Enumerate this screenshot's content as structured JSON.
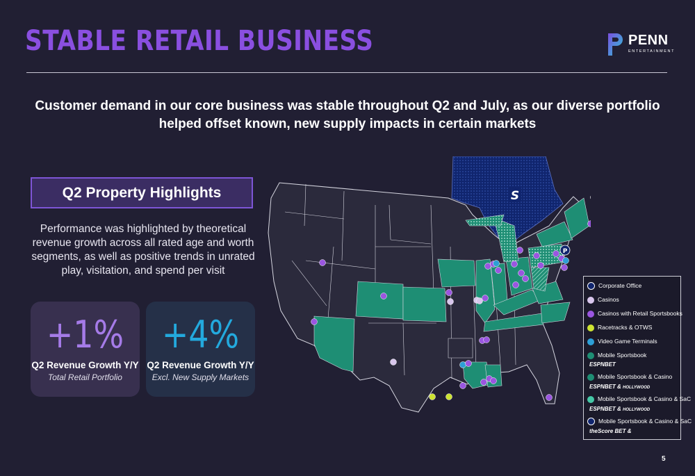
{
  "title": "STABLE RETAIL BUSINESS",
  "logo": {
    "word": "PENN",
    "sub": "ENTERTAINMENT"
  },
  "headline": "Customer demand in our core business was stable throughout Q2 and July, as our diverse portfolio helped offset known, new supply impacts in certain markets",
  "highlights": {
    "heading": "Q2 Property Highlights",
    "body": "Performance was highlighted by theoretical revenue growth across all rated age and worth segments, as well as positive trends in unrated play, visitation, and spend per visit"
  },
  "stats": [
    {
      "value": "+1%",
      "label": "Q2 Revenue Growth Y/Y",
      "sub": "Total Retail Portfolio"
    },
    {
      "value": "+4%",
      "label": "Q2 Revenue Growth Y/Y",
      "sub": "Excl. New Supply Markets"
    }
  ],
  "legend": {
    "items": [
      {
        "label": "Corporate Office",
        "icon": "penn-logo-icon",
        "color": "#1a2f6e"
      },
      {
        "label": "Casinos",
        "icon": "dot",
        "color": "#d8c6ec"
      },
      {
        "label": "Casinos with Retail Sportsbooks",
        "icon": "dot",
        "color": "#9a56e0"
      },
      {
        "label": "Racetracks & OTWS",
        "icon": "dot",
        "color": "#cde332"
      },
      {
        "label": "Video Game Terminals",
        "icon": "dot",
        "color": "#2d9fd6"
      },
      {
        "label": "Mobile Sportsbook",
        "icon": "dot",
        "color": "#1e8e74"
      },
      {
        "label": "Mobile Sportsbook & Casino",
        "icon": "dot",
        "color": "#1e8e74"
      },
      {
        "label": "Mobile Sportsbook & Casino & SaC",
        "icon": "dot",
        "color": "#45c7a6"
      },
      {
        "label": "Mobile Sportsbook & Casino & SaC",
        "icon": "score-icon",
        "color": "#10256e"
      }
    ],
    "brands": {
      "espn": "ESPNBET",
      "amp": "&",
      "hollywood": "HOLLYWOOD",
      "score": "theScore BET"
    }
  },
  "page_number": "5",
  "colors": {
    "background": "#211f33",
    "title": "#8a4fe0",
    "land": "#2b2a3c",
    "sportsbook_state": "#1e8e74",
    "canada": "#10256e"
  }
}
